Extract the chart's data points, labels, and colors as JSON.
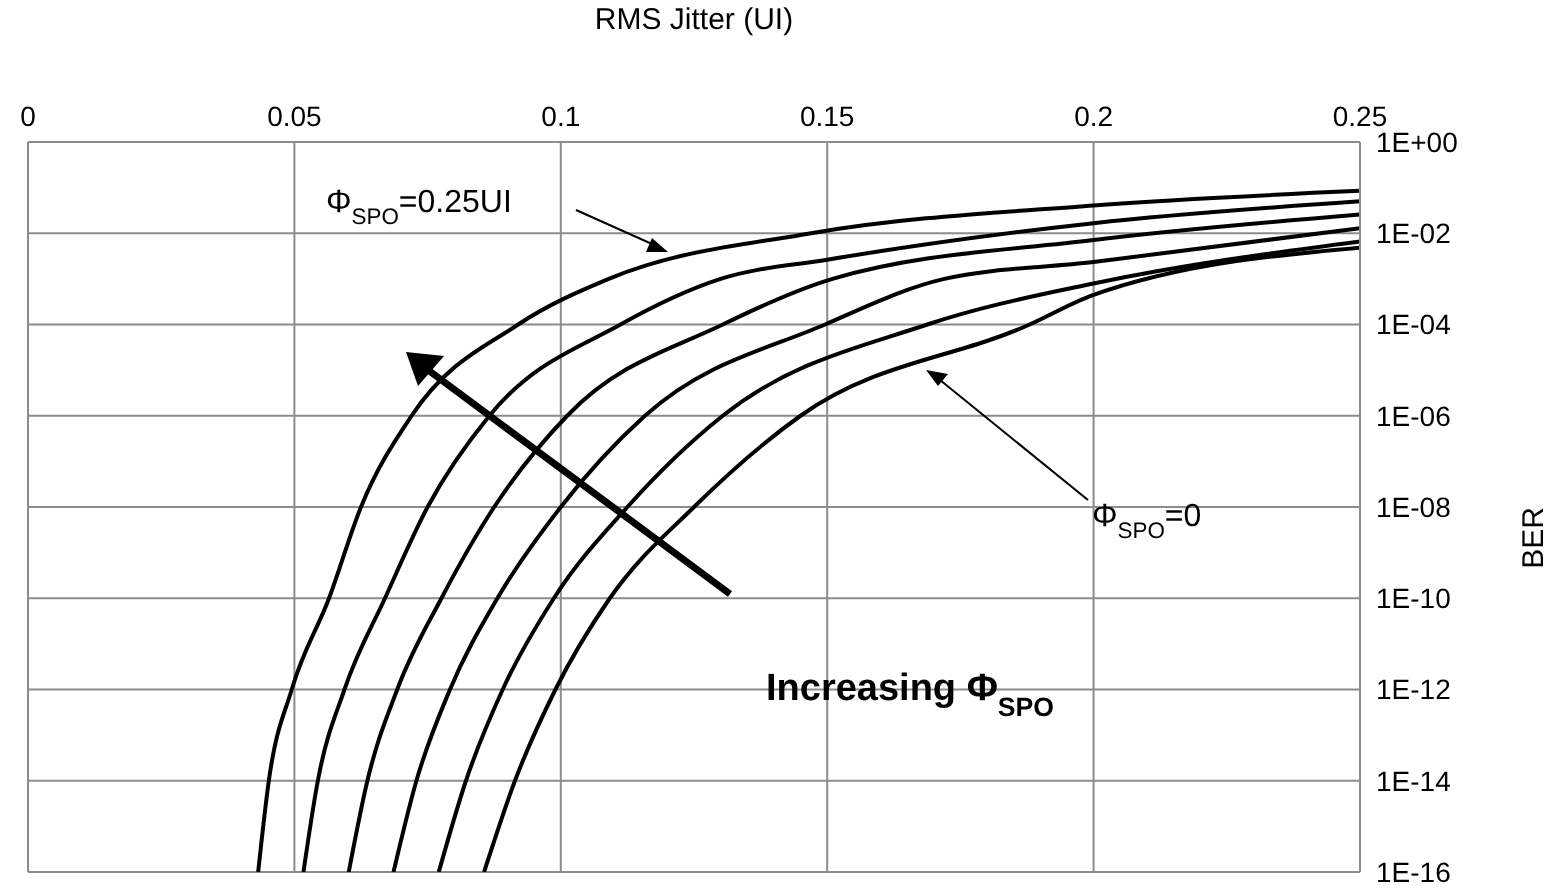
{
  "chart_data": {
    "type": "line",
    "xlabel": "RMS Jitter (UI)",
    "ylabel": "BER",
    "log": "y",
    "grid": true,
    "marker": "none",
    "line_style": "solid",
    "xlim": [
      0,
      0.25
    ],
    "xticks": [
      0,
      0.05,
      0.1,
      0.15,
      0.2,
      0.25
    ],
    "ylim": [
      1e-16,
      1
    ],
    "yticks": [
      {
        "value": 1,
        "label": "1E+00"
      },
      {
        "value": 0.01,
        "label": "1E-02"
      },
      {
        "value": 0.0001,
        "label": "1E-04"
      },
      {
        "value": 1e-06,
        "label": "1E-06"
      },
      {
        "value": 1e-08,
        "label": "1E-08"
      },
      {
        "value": 1e-10,
        "label": "1E-10"
      },
      {
        "value": 1e-12,
        "label": "1E-12"
      },
      {
        "value": 1e-14,
        "label": "1E-14"
      },
      {
        "value": 1e-16,
        "label": "1E-16"
      }
    ],
    "series": [
      {
        "color": "#000000",
        "x": [
          0.0432,
          0.0452,
          0.0495,
          0.0565,
          0.0625,
          0.072,
          0.092,
          0.109,
          0.147,
          0.2,
          0.25
        ],
        "values": [
          1e-16,
          1e-14,
          1e-12,
          1e-10,
          1e-08,
          1e-06,
          0.0001,
          0.001,
          0.01,
          0.0407,
          0.0851
        ]
      },
      {
        "color": "#000000",
        "x": [
          0.0517,
          0.0544,
          0.0594,
          0.067,
          0.075,
          0.0866,
          0.1112,
          0.13,
          0.15,
          0.2,
          0.25
        ],
        "values": [
          1e-16,
          1e-14,
          1e-12,
          1e-10,
          1e-08,
          1e-06,
          0.0001,
          0.001,
          0.00263,
          0.0166,
          0.0501
        ]
      },
      {
        "color": "#000000",
        "x": [
          0.0602,
          0.0637,
          0.0693,
          0.0776,
          0.0875,
          0.1012,
          0.1304,
          0.151,
          0.2,
          0.25
        ],
        "values": [
          1e-16,
          1e-14,
          1e-12,
          1e-10,
          1e-08,
          1e-06,
          0.0001,
          0.001,
          0.00708,
          0.0257
        ]
      },
      {
        "color": "#000000",
        "x": [
          0.0686,
          0.0729,
          0.0792,
          0.0881,
          0.1,
          0.1158,
          0.1496,
          0.172,
          0.2,
          0.25
        ],
        "values": [
          1e-16,
          1e-14,
          1e-12,
          1e-10,
          1e-08,
          1e-06,
          0.0001,
          0.001,
          0.00234,
          0.0129
        ]
      },
      {
        "color": "#000000",
        "x": [
          0.0771,
          0.0822,
          0.0891,
          0.0987,
          0.1125,
          0.1304,
          0.1688,
          0.2,
          0.25
        ],
        "values": [
          1e-16,
          1e-14,
          1e-12,
          1e-10,
          1e-08,
          1e-06,
          0.0001,
          0.000794,
          0.00661
        ]
      },
      {
        "color": "#000000",
        "x": [
          0.0856,
          0.0914,
          0.099,
          0.1092,
          0.125,
          0.145,
          0.188,
          0.2,
          0.25
        ],
        "values": [
          1e-16,
          1e-14,
          1e-12,
          1e-10,
          1e-08,
          1e-06,
          0.0001,
          0.000447,
          0.00479
        ]
      }
    ],
    "annotations": [
      "Φ$_{SPO}$=0.25UI",
      "Φ$_{SPO}$=0",
      "Increasing Φ$_{SPO}$"
    ]
  }
}
